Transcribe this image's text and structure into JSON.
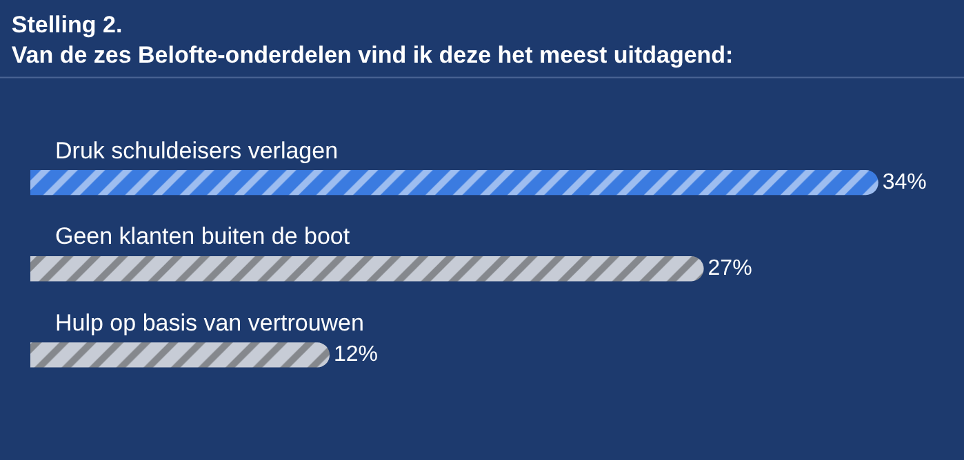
{
  "chart_data": {
    "type": "bar",
    "orientation": "horizontal",
    "title": "Stelling 2.\nVan de zes Belofte-onderdelen vind ik deze het meest uitdagend:",
    "categories": [
      "Druk schuldeisers verlagen",
      "Geen klanten buiten de boot",
      "Hulp op basis van vertrouwen"
    ],
    "values": [
      34,
      27,
      12
    ],
    "value_labels": [
      "34%",
      "27%",
      "12%"
    ],
    "colors": [
      "#3b7be0",
      "#c7ccd6",
      "#c7ccd6"
    ]
  }
}
